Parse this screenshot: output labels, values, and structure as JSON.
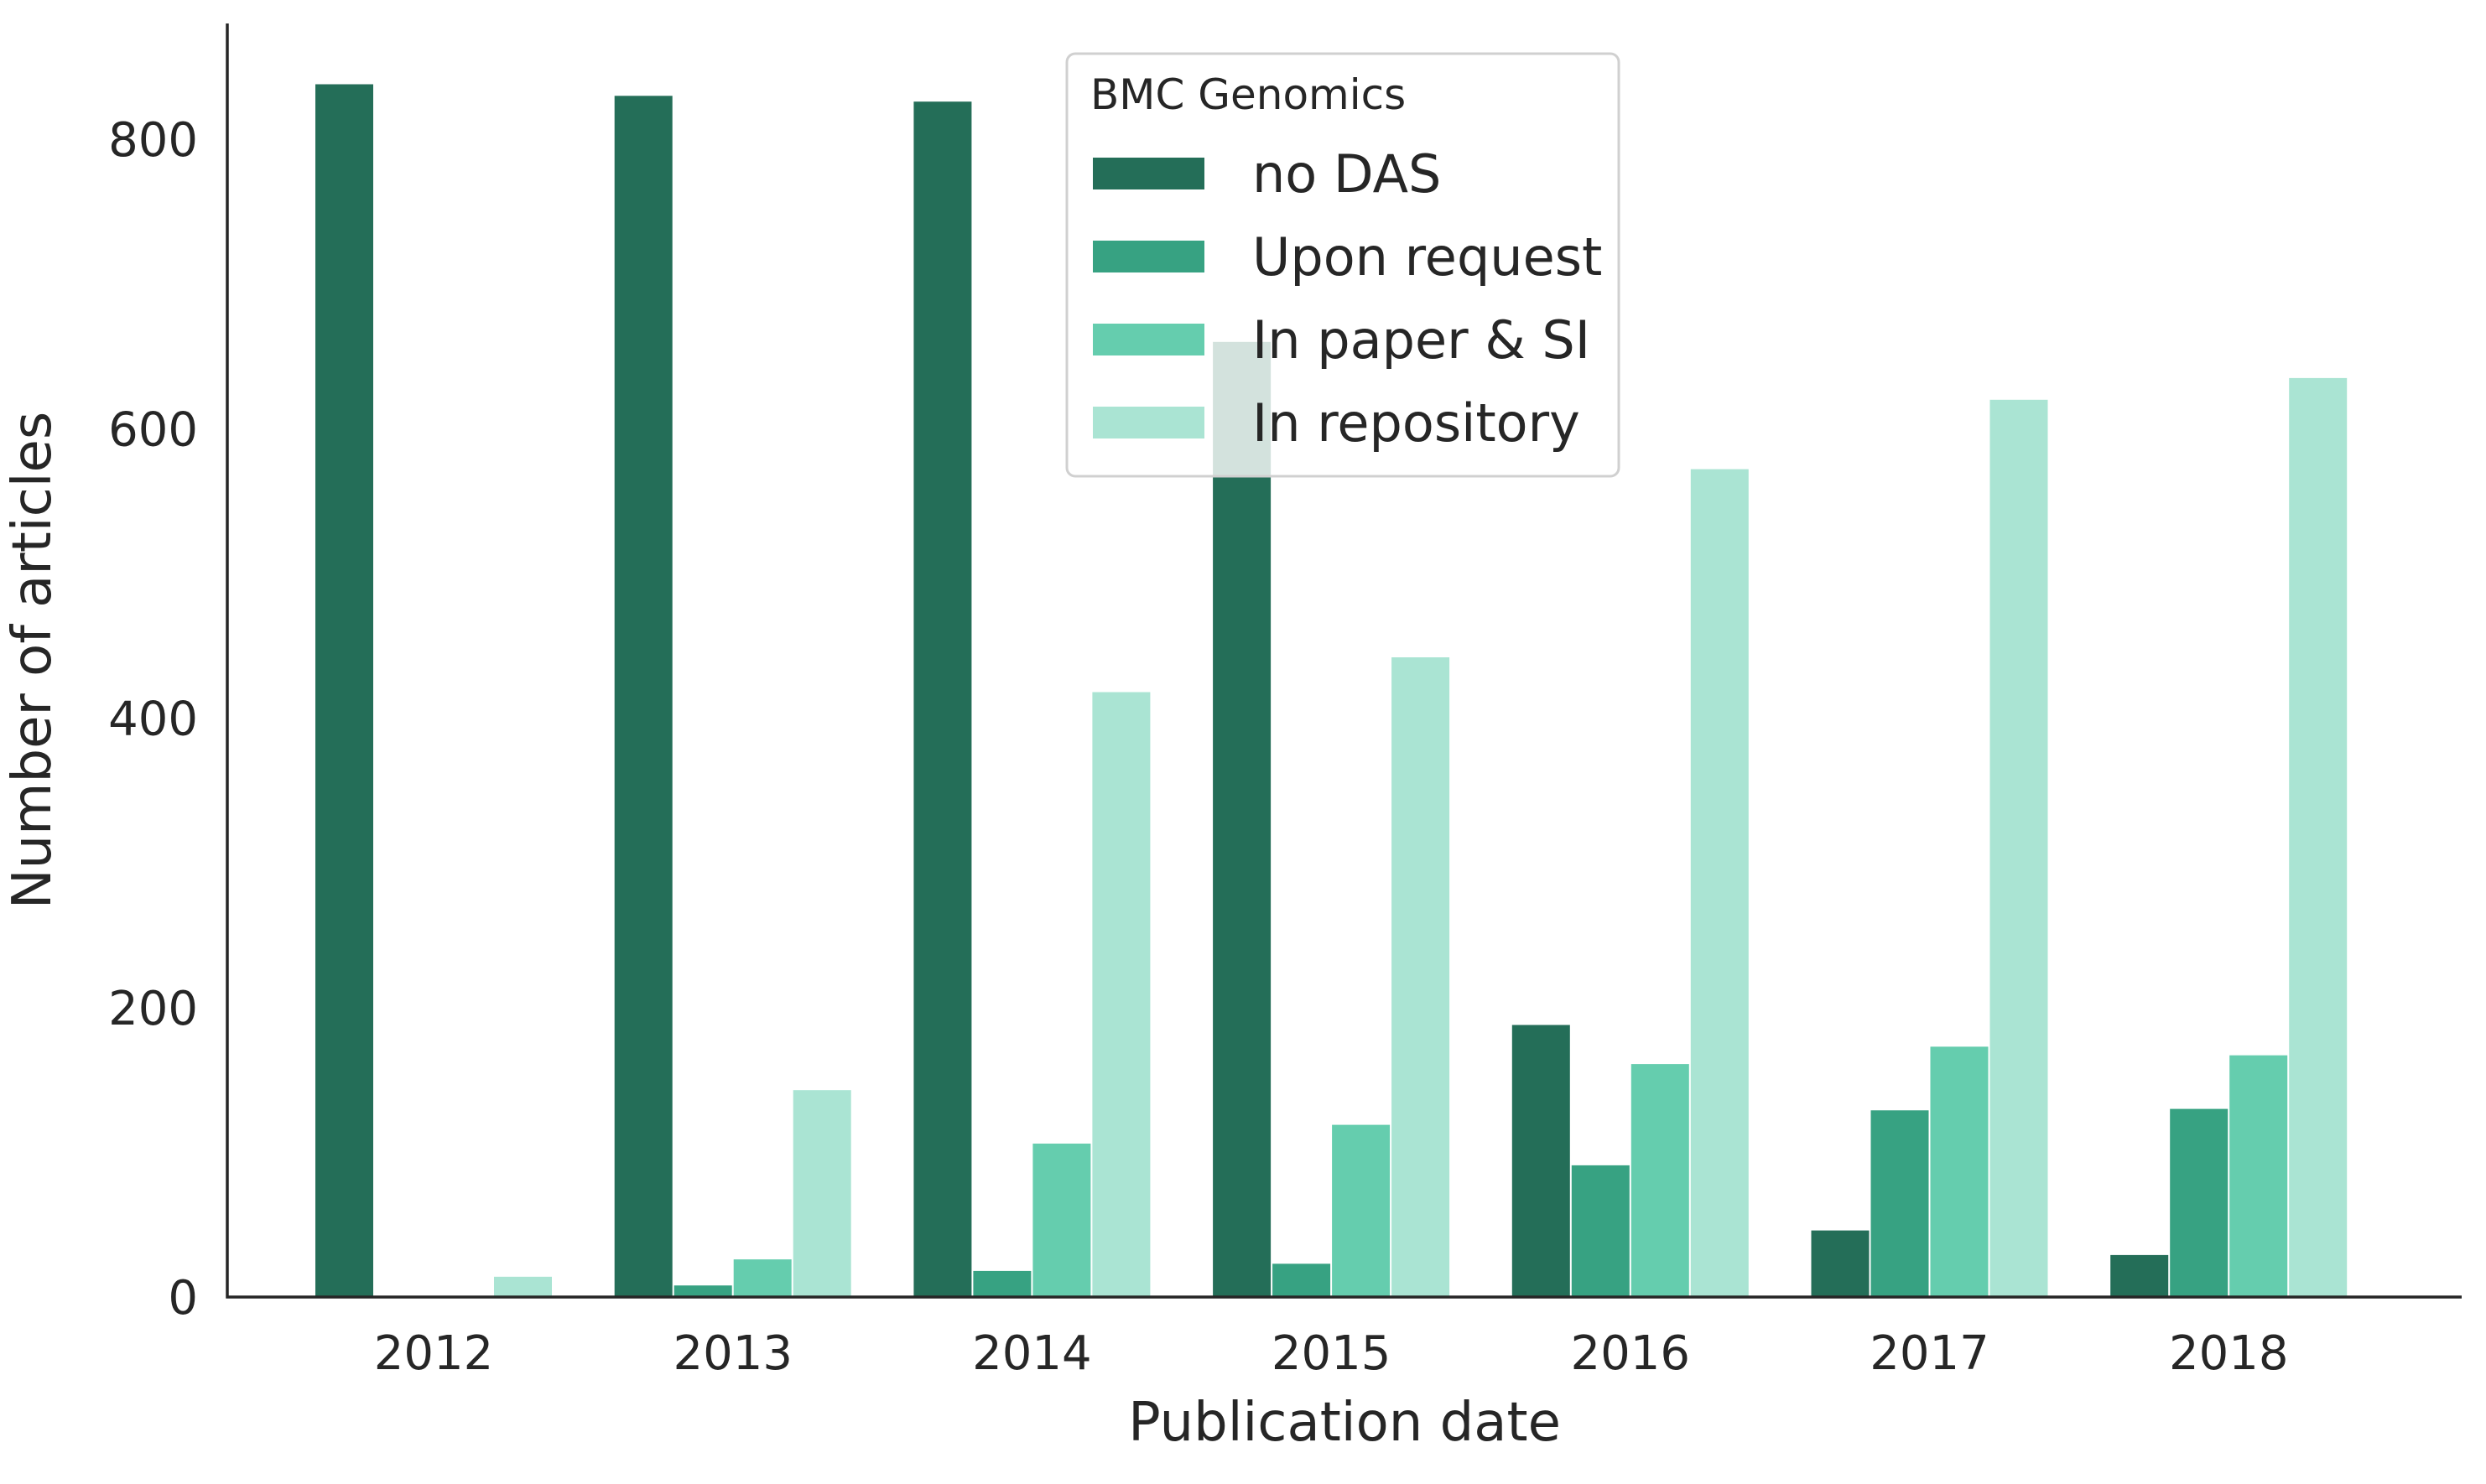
{
  "chart_data": {
    "type": "bar",
    "title": "",
    "xlabel": "Publication date",
    "ylabel": "Number of articles",
    "categories": [
      "2012",
      "2013",
      "2014",
      "2015",
      "2016",
      "2017",
      "2018"
    ],
    "ylim": [
      0,
      880
    ],
    "yticks": [
      0,
      200,
      400,
      600,
      800
    ],
    "grid": false,
    "legend": {
      "title": "BMC Genomics",
      "placement": "top-center"
    },
    "series": [
      {
        "name": "no DAS",
        "color": "#246e58",
        "values": [
          838,
          830,
          826,
          660,
          188,
          46,
          29
        ]
      },
      {
        "name": "Upon request",
        "color": "#37a282",
        "values": [
          0,
          8,
          18,
          23,
          91,
          129,
          130
        ]
      },
      {
        "name": "In paper & SI",
        "color": "#65cdae",
        "values": [
          0,
          26,
          106,
          119,
          161,
          173,
          167
        ]
      },
      {
        "name": "In repository",
        "color": "#aae4d3",
        "values": [
          14,
          143,
          418,
          442,
          572,
          620,
          635
        ]
      }
    ]
  }
}
